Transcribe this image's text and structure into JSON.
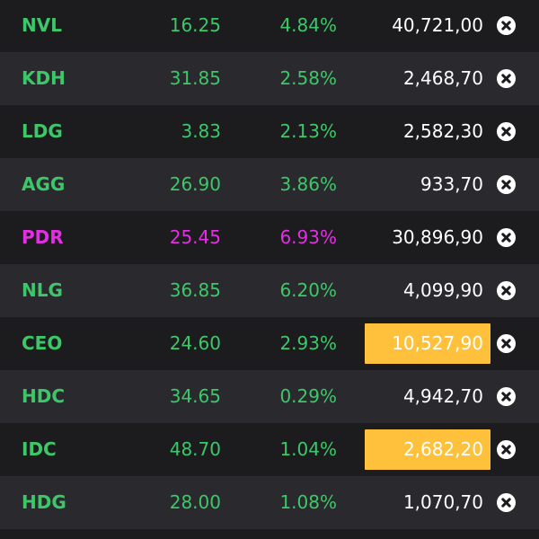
{
  "colors": {
    "up": "#3cc769",
    "ceiling": "#e42de4",
    "highlight": "#ffc13b",
    "text": "#ffffff"
  },
  "rows": [
    {
      "symbol": "NVL",
      "price": "16.25",
      "change": "4.84%",
      "volume": "40,721,00",
      "status": "up",
      "highlight": false
    },
    {
      "symbol": "KDH",
      "price": "31.85",
      "change": "2.58%",
      "volume": "2,468,70",
      "status": "up",
      "highlight": false
    },
    {
      "symbol": "LDG",
      "price": "3.83",
      "change": "2.13%",
      "volume": "2,582,30",
      "status": "up",
      "highlight": false
    },
    {
      "symbol": "AGG",
      "price": "26.90",
      "change": "3.86%",
      "volume": "933,70",
      "status": "up",
      "highlight": false
    },
    {
      "symbol": "PDR",
      "price": "25.45",
      "change": "6.93%",
      "volume": "30,896,90",
      "status": "ceiling",
      "highlight": false
    },
    {
      "symbol": "NLG",
      "price": "36.85",
      "change": "6.20%",
      "volume": "4,099,90",
      "status": "up",
      "highlight": false
    },
    {
      "symbol": "CEO",
      "price": "24.60",
      "change": "2.93%",
      "volume": "10,527,90",
      "status": "up",
      "highlight": true
    },
    {
      "symbol": "HDC",
      "price": "34.65",
      "change": "0.29%",
      "volume": "4,942,70",
      "status": "up",
      "highlight": false
    },
    {
      "symbol": "IDC",
      "price": "48.70",
      "change": "1.04%",
      "volume": "2,682,20",
      "status": "up",
      "highlight": true
    },
    {
      "symbol": "HDG",
      "price": "28.00",
      "change": "1.08%",
      "volume": "1,070,70",
      "status": "up",
      "highlight": false
    }
  ],
  "icons": {
    "remove": "close-circle-icon"
  }
}
